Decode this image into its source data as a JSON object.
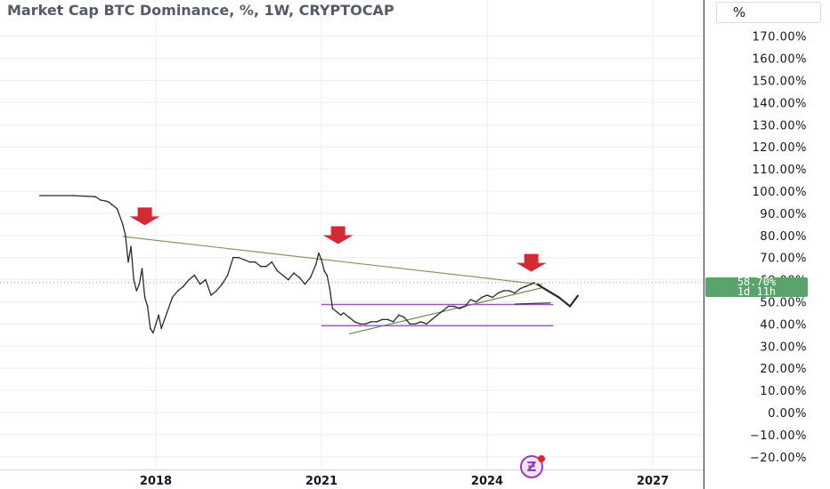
{
  "chart_data": {
    "type": "line",
    "title": "Market Cap BTC Dominance, %, 1W, CRYPTOCAP",
    "unit_button": "%",
    "ylim": [
      -25,
      180
    ],
    "y_ticks": [
      170,
      160,
      150,
      140,
      130,
      120,
      110,
      100,
      90,
      80,
      70,
      60,
      50,
      40,
      30,
      20,
      10,
      0,
      -10,
      -20
    ],
    "y_tick_labels": [
      "170.00%",
      "160.00%",
      "150.00%",
      "140.00%",
      "130.00%",
      "120.00%",
      "110.00%",
      "100.00%",
      "90.00%",
      "80.00%",
      "70.00%",
      "60.00%",
      "50.00%",
      "40.00%",
      "30.00%",
      "20.00%",
      "10.00%",
      "0.00%",
      "−10.00%",
      "−20.00%"
    ],
    "xlim": [
      2015.9,
      2027.5
    ],
    "x_ticks": [
      2018,
      2021,
      2024,
      2027
    ],
    "x_tick_labels": [
      "2018",
      "2021",
      "2024",
      "2027"
    ],
    "current_value_label": "58.70%",
    "countdown_label": "1d 11h",
    "grid": true,
    "series": [
      {
        "color": "#2b2b2b",
        "x": [
          2015.9,
          2016.5,
          2016.9,
          2017.0,
          2017.1,
          2017.15,
          2017.2,
          2017.3,
          2017.4,
          2017.45,
          2017.5,
          2017.55,
          2017.6,
          2017.65,
          2017.7,
          2017.75,
          2017.8,
          2017.85,
          2017.9,
          2017.95,
          2018.0,
          2018.05,
          2018.1,
          2018.2,
          2018.3,
          2018.4,
          2018.5,
          2018.6,
          2018.7,
          2018.8,
          2018.9,
          2019.0,
          2019.1,
          2019.2,
          2019.3,
          2019.4,
          2019.5,
          2019.6,
          2019.7,
          2019.8,
          2019.9,
          2020.0,
          2020.1,
          2020.2,
          2020.3,
          2020.4,
          2020.5,
          2020.6,
          2020.7,
          2020.8,
          2020.9,
          2020.95,
          2021.0,
          2021.05,
          2021.1,
          2021.15,
          2021.2,
          2021.3,
          2021.35,
          2021.4,
          2021.5,
          2021.6,
          2021.7,
          2021.8,
          2021.9,
          2022.0,
          2022.1,
          2022.2,
          2022.3,
          2022.4,
          2022.5,
          2022.6,
          2022.7,
          2022.8,
          2022.9,
          2023.0,
          2023.1,
          2023.2,
          2023.3,
          2023.4,
          2023.5,
          2023.6,
          2023.7,
          2023.8,
          2023.9,
          2024.0,
          2024.1,
          2024.2,
          2024.3,
          2024.4,
          2024.5,
          2024.6,
          2024.7,
          2024.8,
          2024.85
        ],
        "y": [
          98,
          98,
          97.5,
          96,
          95.5,
          95,
          94,
          92,
          85,
          80,
          68,
          75,
          60,
          55,
          58,
          65,
          52,
          48,
          38,
          36,
          40,
          44,
          38,
          45,
          52,
          55,
          57,
          60,
          62,
          58,
          60,
          53,
          55,
          58,
          62,
          70,
          70,
          69,
          68,
          68,
          66,
          66,
          68,
          64,
          62,
          60,
          63,
          61,
          58,
          61,
          67,
          72,
          69,
          64,
          62,
          56,
          47,
          45,
          44,
          45,
          43,
          41,
          40,
          40,
          41,
          41,
          42,
          42,
          41,
          44,
          43,
          40,
          40,
          41,
          40,
          42,
          44,
          46,
          48,
          48,
          47,
          48,
          51,
          50,
          52,
          53,
          52,
          54,
          55,
          55,
          54,
          56,
          57,
          58,
          58.7
        ]
      }
    ],
    "annotations": {
      "resistance_line": [
        [
          2017.4,
          79.5
        ],
        [
          2025.0,
          57.8
        ]
      ],
      "support_line": [
        [
          2021.5,
          35.5
        ],
        [
          2025.0,
          56.4
        ]
      ],
      "range_top": [
        [
          2021.0,
          48.8
        ],
        [
          2025.2,
          48.8
        ]
      ],
      "range_bottom": [
        [
          2021.0,
          39.2
        ],
        [
          2025.2,
          39.2
        ]
      ],
      "red_arrows": [
        [
          2017.8,
          87
        ],
        [
          2021.3,
          78.5
        ],
        [
          2024.8,
          66
        ]
      ],
      "projection": [
        [
          2024.9,
          58
        ],
        [
          2025.3,
          52
        ],
        [
          2025.5,
          48
        ],
        [
          2025.65,
          53
        ]
      ],
      "projection_flag": [
        [
          2024.5,
          49
        ],
        [
          2025.15,
          49.5
        ]
      ],
      "price_line_y": 58.7
    },
    "colors": {
      "resistance": "#7c9c63",
      "support": "#5f8a42",
      "range": "#a154c6",
      "arrow": "#d42a36",
      "grid": "#eceef2",
      "axis_text": "#131722",
      "current_label": "#5aa36c"
    }
  }
}
